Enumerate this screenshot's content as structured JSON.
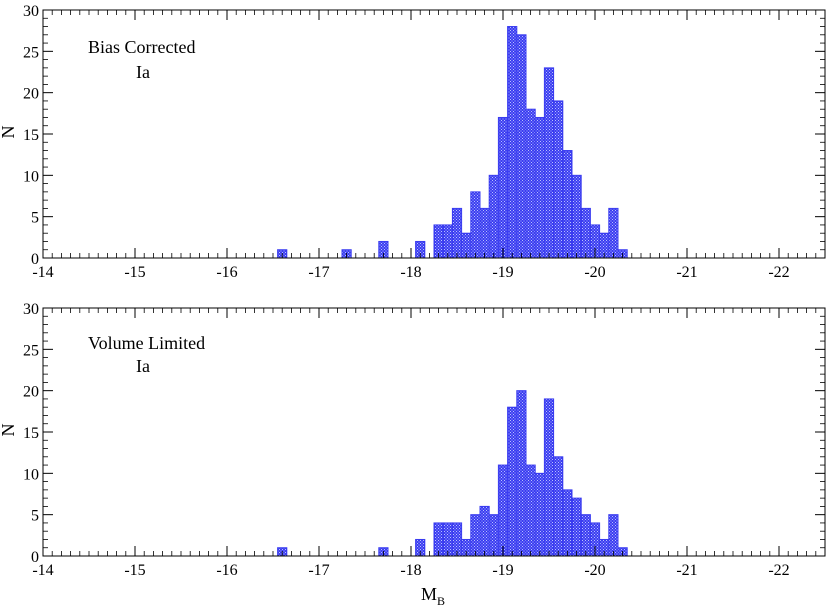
{
  "chart_data": [
    {
      "type": "bar",
      "annotation": [
        "Bias Corrected",
        "Ia"
      ],
      "ylabel": "N",
      "xlabel": "",
      "xlim": [
        -14,
        -22.5
      ],
      "x_reversed": true,
      "ylim": [
        0,
        30
      ],
      "xticks": [
        -14,
        -15,
        -16,
        -17,
        -18,
        -19,
        -20,
        -21,
        -22
      ],
      "yticks": [
        0,
        5,
        10,
        15,
        20,
        25,
        30
      ],
      "bin_width": 0.1,
      "bar_color": "#3a3cf0",
      "bars": [
        {
          "x": -16.6,
          "value": 1
        },
        {
          "x": -17.3,
          "value": 1
        },
        {
          "x": -17.7,
          "value": 2
        },
        {
          "x": -18.1,
          "value": 2
        },
        {
          "x": -18.3,
          "value": 4
        },
        {
          "x": -18.4,
          "value": 4
        },
        {
          "x": -18.5,
          "value": 6
        },
        {
          "x": -18.6,
          "value": 3
        },
        {
          "x": -18.7,
          "value": 8
        },
        {
          "x": -18.8,
          "value": 6
        },
        {
          "x": -18.9,
          "value": 10
        },
        {
          "x": -19.0,
          "value": 17
        },
        {
          "x": -19.1,
          "value": 28
        },
        {
          "x": -19.2,
          "value": 27
        },
        {
          "x": -19.3,
          "value": 18
        },
        {
          "x": -19.4,
          "value": 17
        },
        {
          "x": -19.5,
          "value": 23
        },
        {
          "x": -19.6,
          "value": 19
        },
        {
          "x": -19.7,
          "value": 13
        },
        {
          "x": -19.8,
          "value": 10
        },
        {
          "x": -19.9,
          "value": 6
        },
        {
          "x": -20.0,
          "value": 4
        },
        {
          "x": -20.1,
          "value": 3
        },
        {
          "x": -20.2,
          "value": 6
        },
        {
          "x": -20.3,
          "value": 1
        }
      ]
    },
    {
      "type": "bar",
      "annotation": [
        "Volume Limited",
        "Ia"
      ],
      "ylabel": "N",
      "xlabel": "M",
      "xlabel_sub": "B",
      "xlim": [
        -14,
        -22.5
      ],
      "x_reversed": true,
      "ylim": [
        0,
        30
      ],
      "xticks": [
        -14,
        -15,
        -16,
        -17,
        -18,
        -19,
        -20,
        -21,
        -22
      ],
      "yticks": [
        0,
        5,
        10,
        15,
        20,
        25,
        30
      ],
      "bin_width": 0.1,
      "bar_color": "#3a3cf0",
      "bars": [
        {
          "x": -16.6,
          "value": 1
        },
        {
          "x": -17.7,
          "value": 1
        },
        {
          "x": -18.1,
          "value": 2
        },
        {
          "x": -18.3,
          "value": 4
        },
        {
          "x": -18.4,
          "value": 4
        },
        {
          "x": -18.5,
          "value": 4
        },
        {
          "x": -18.6,
          "value": 2
        },
        {
          "x": -18.7,
          "value": 5
        },
        {
          "x": -18.8,
          "value": 6
        },
        {
          "x": -18.9,
          "value": 5
        },
        {
          "x": -19.0,
          "value": 11
        },
        {
          "x": -19.1,
          "value": 18
        },
        {
          "x": -19.2,
          "value": 20
        },
        {
          "x": -19.3,
          "value": 11
        },
        {
          "x": -19.4,
          "value": 10
        },
        {
          "x": -19.5,
          "value": 19
        },
        {
          "x": -19.6,
          "value": 12
        },
        {
          "x": -19.7,
          "value": 8
        },
        {
          "x": -19.8,
          "value": 7
        },
        {
          "x": -19.9,
          "value": 5
        },
        {
          "x": -20.0,
          "value": 4
        },
        {
          "x": -20.1,
          "value": 2
        },
        {
          "x": -20.2,
          "value": 5
        },
        {
          "x": -20.3,
          "value": 1
        }
      ]
    }
  ]
}
